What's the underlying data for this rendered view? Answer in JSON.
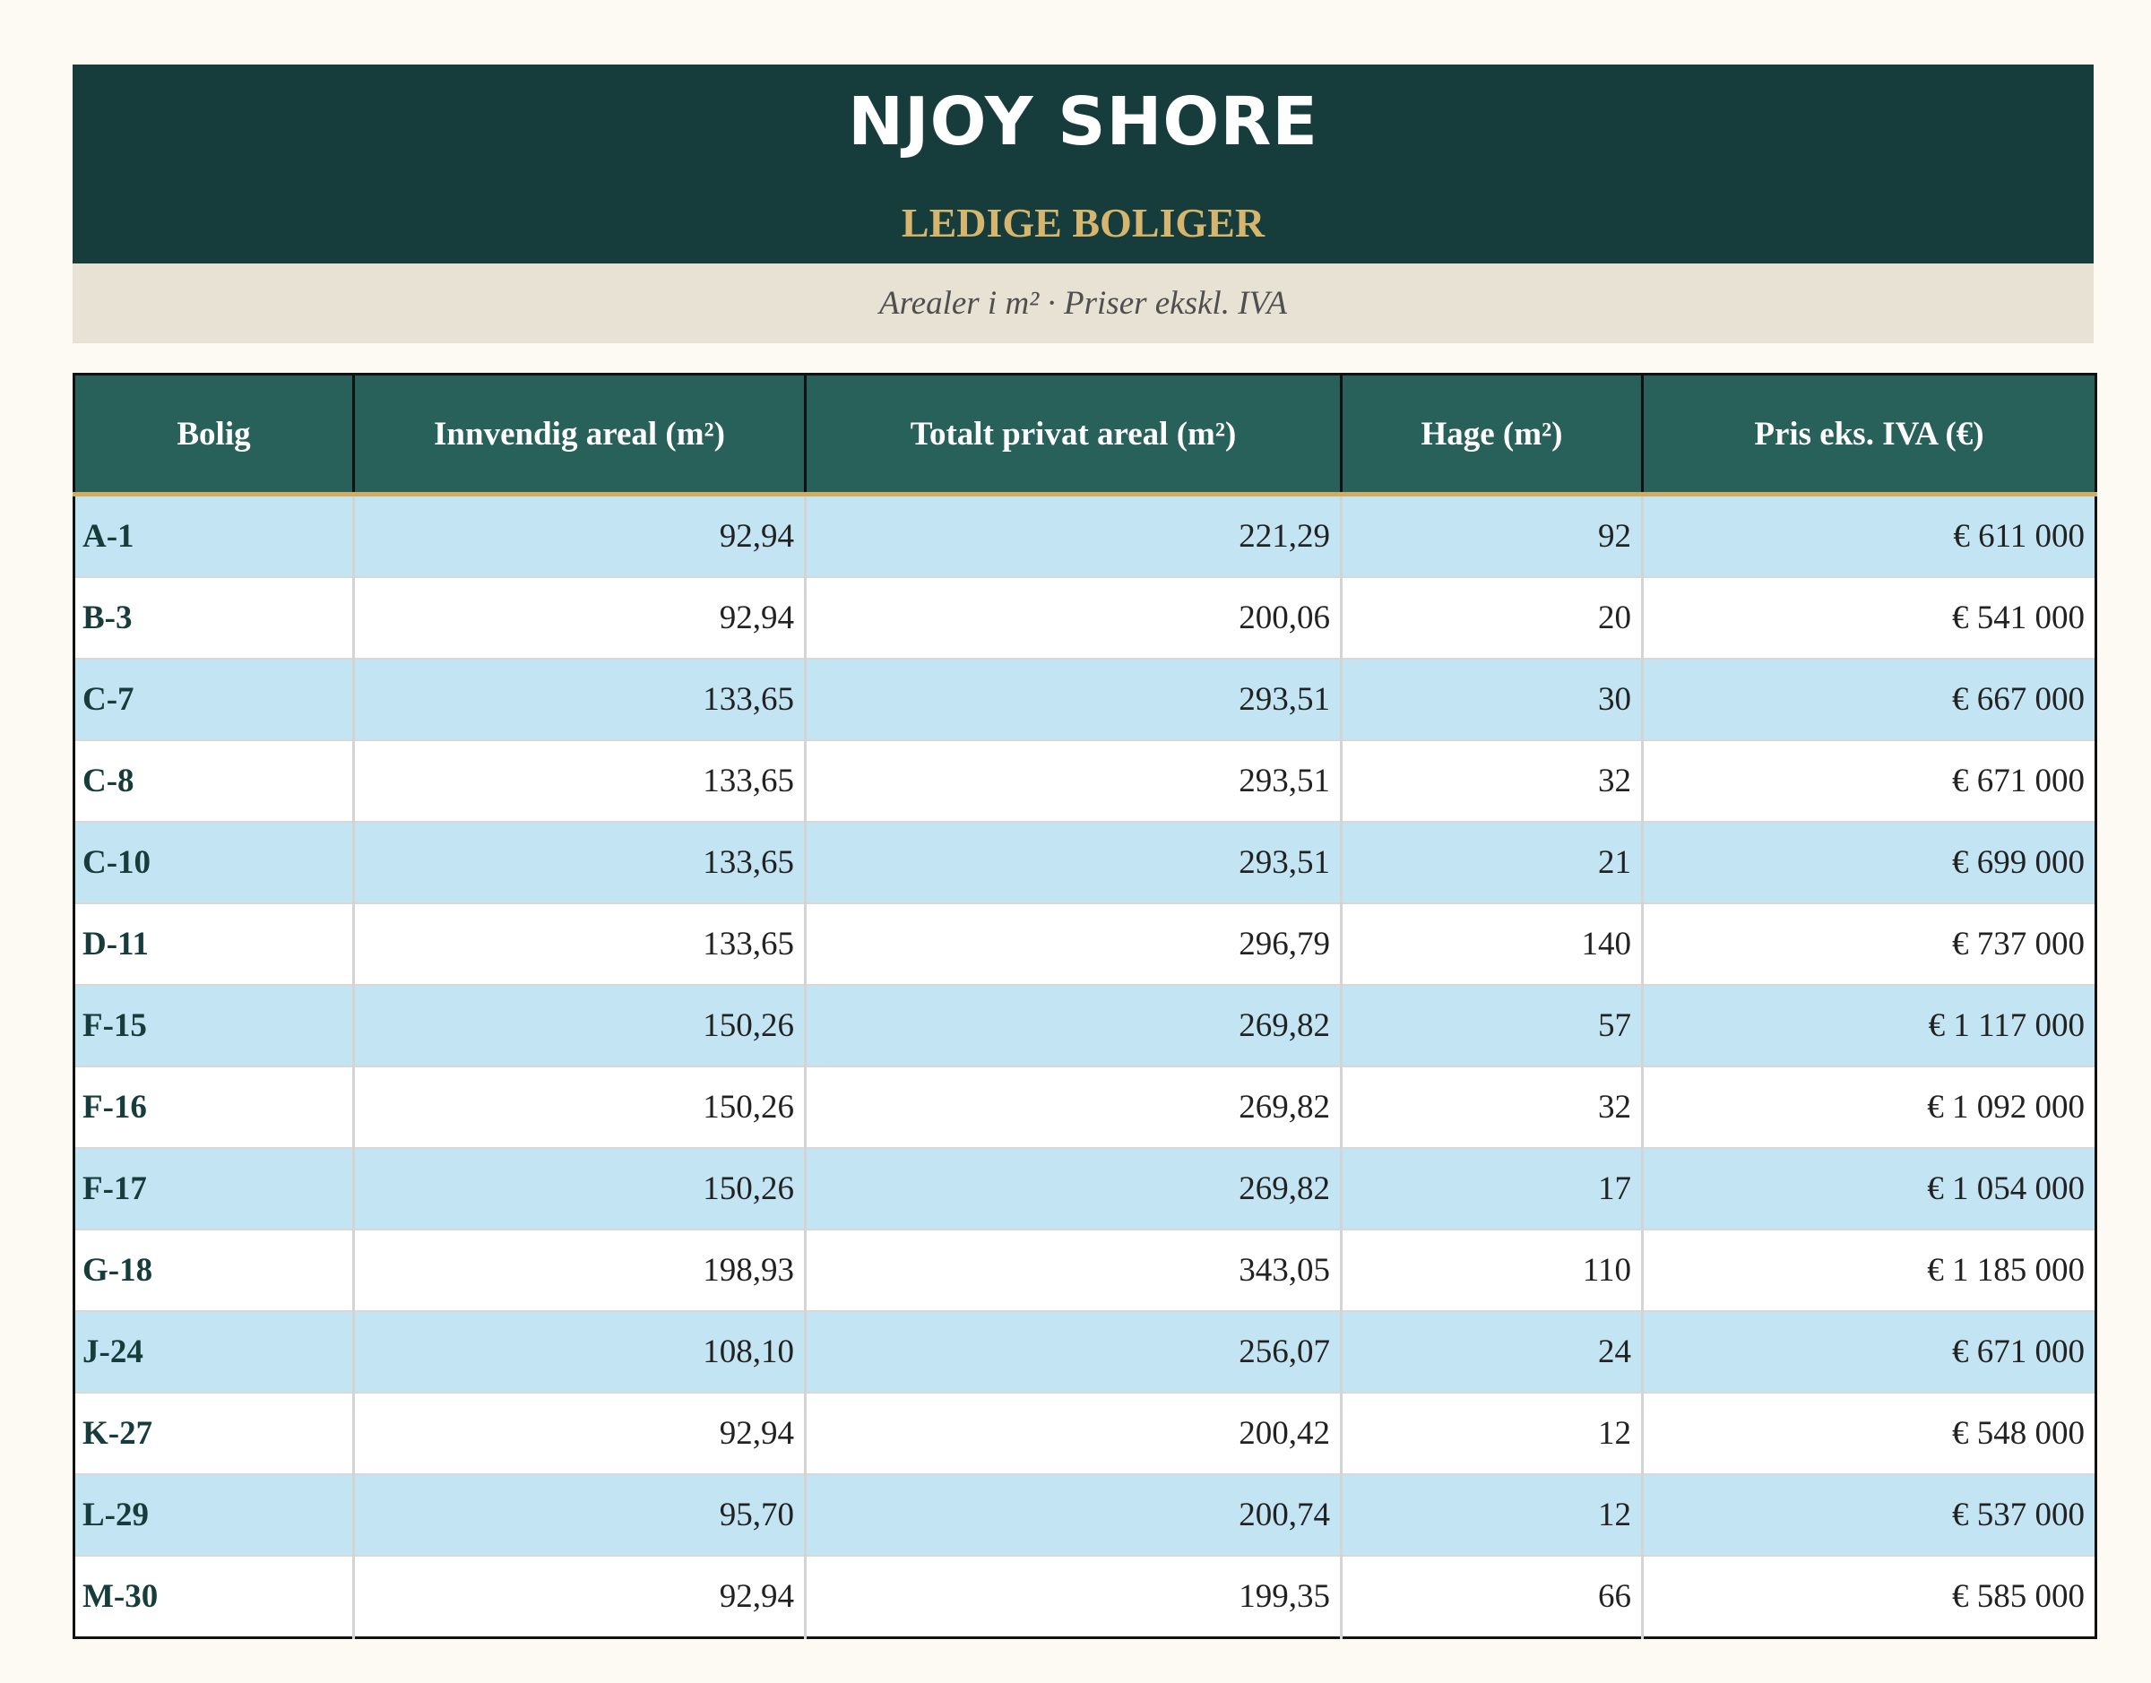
{
  "header": {
    "title": "NJOY SHORE",
    "subtitle": "LEDIGE BOLIGER"
  },
  "note": "Arealer i m² · Priser ekskl. IVA",
  "table": {
    "columns": [
      "Bolig",
      "Innvendig areal (m²)",
      "Totalt privat areal (m²)",
      "Hage (m²)",
      "Pris eks. IVA (€)"
    ],
    "rows": [
      {
        "bolig": "A-1",
        "innvendig": "92,94",
        "totalt": "221,29",
        "hage": "92",
        "pris": "€ 611 000"
      },
      {
        "bolig": "B-3",
        "innvendig": "92,94",
        "totalt": "200,06",
        "hage": "20",
        "pris": "€ 541 000"
      },
      {
        "bolig": "C-7",
        "innvendig": "133,65",
        "totalt": "293,51",
        "hage": "30",
        "pris": "€ 667 000"
      },
      {
        "bolig": "C-8",
        "innvendig": "133,65",
        "totalt": "293,51",
        "hage": "32",
        "pris": "€ 671 000"
      },
      {
        "bolig": "C-10",
        "innvendig": "133,65",
        "totalt": "293,51",
        "hage": "21",
        "pris": "€ 699 000"
      },
      {
        "bolig": "D-11",
        "innvendig": "133,65",
        "totalt": "296,79",
        "hage": "140",
        "pris": "€ 737 000"
      },
      {
        "bolig": "F-15",
        "innvendig": "150,26",
        "totalt": "269,82",
        "hage": "57",
        "pris": "€ 1 117 000"
      },
      {
        "bolig": "F-16",
        "innvendig": "150,26",
        "totalt": "269,82",
        "hage": "32",
        "pris": "€ 1 092 000"
      },
      {
        "bolig": "F-17",
        "innvendig": "150,26",
        "totalt": "269,82",
        "hage": "17",
        "pris": "€ 1 054 000"
      },
      {
        "bolig": "G-18",
        "innvendig": "198,93",
        "totalt": "343,05",
        "hage": "110",
        "pris": "€ 1 185 000"
      },
      {
        "bolig": "J-24",
        "innvendig": "108,10",
        "totalt": "256,07",
        "hage": "24",
        "pris": "€ 671 000"
      },
      {
        "bolig": "K-27",
        "innvendig": "92,94",
        "totalt": "200,42",
        "hage": "12",
        "pris": "€ 548 000"
      },
      {
        "bolig": "L-29",
        "innvendig": "95,70",
        "totalt": "200,74",
        "hage": "12",
        "pris": "€ 537 000"
      },
      {
        "bolig": "M-30",
        "innvendig": "92,94",
        "totalt": "199,35",
        "hage": "66",
        "pris": "€ 585 000"
      }
    ]
  },
  "colors": {
    "header_bg": "#163d3b",
    "subtitle_gold": "#d6b56e",
    "note_band_bg": "#e8e2d5",
    "table_header_bg": "#28605a",
    "header_rule_gold": "#d4ac5f",
    "row_stripe": "#c3e4f3",
    "row_plain": "#ffffff",
    "unit_text": "#163d3b"
  }
}
